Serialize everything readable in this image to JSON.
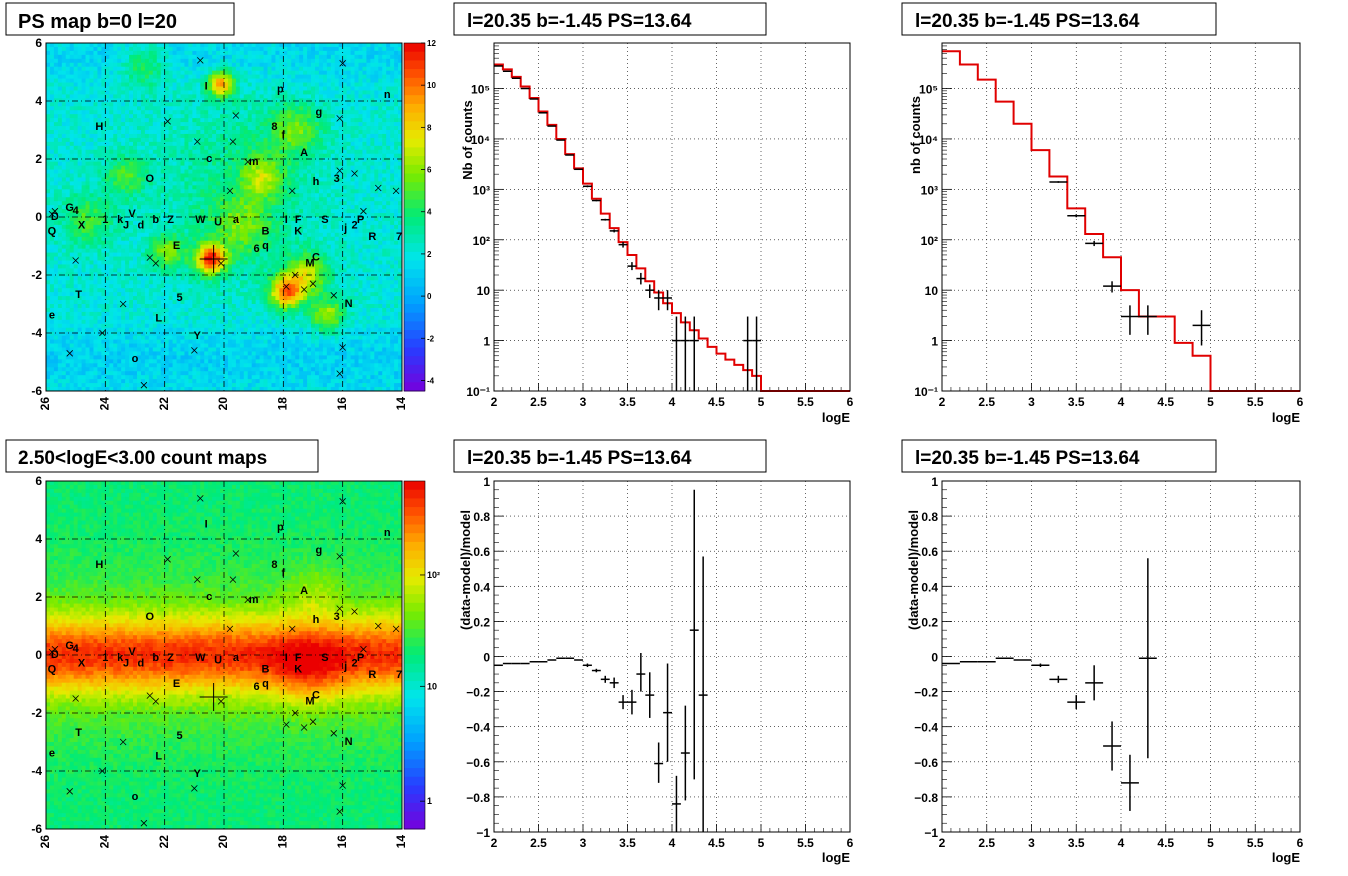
{
  "panels": {
    "map_top": {
      "title": "PS map b=0 l=20",
      "x_ticks": [
        "26",
        "24",
        "22",
        "20",
        "18",
        "16",
        "14"
      ],
      "y_ticks": [
        "6",
        "4",
        "2",
        "0",
        "-2",
        "-4",
        "-6"
      ],
      "colorbar_ticks": [
        "12",
        "10",
        "8",
        "6",
        "4",
        "2",
        "0",
        "-2",
        "-4"
      ]
    },
    "map_bottom": {
      "title": "2.50<logE<3.00 count maps",
      "x_ticks": [
        "26",
        "24",
        "22",
        "20",
        "18",
        "16",
        "14"
      ],
      "y_ticks": [
        "6",
        "4",
        "2",
        "0",
        "-2",
        "-4",
        "-6"
      ],
      "colorbar_ticks": [
        "10²",
        "10",
        "1"
      ]
    },
    "source_labels": [
      {
        "t": "I",
        "l": 20.6,
        "b": 4.5
      },
      {
        "t": "p",
        "l": 18.1,
        "b": 4.4
      },
      {
        "t": "n",
        "l": 14.5,
        "b": 4.2
      },
      {
        "t": "g",
        "l": 16.8,
        "b": 3.6
      },
      {
        "t": "H",
        "l": 24.2,
        "b": 3.1
      },
      {
        "t": "8",
        "l": 18.3,
        "b": 3.1
      },
      {
        "t": "f",
        "l": 18.0,
        "b": 2.8
      },
      {
        "t": "A",
        "l": 17.3,
        "b": 2.2
      },
      {
        "t": "c",
        "l": 20.5,
        "b": 2.0
      },
      {
        "t": "m",
        "l": 19.0,
        "b": 1.9
      },
      {
        "t": "h",
        "l": 16.9,
        "b": 1.2
      },
      {
        "t": "3",
        "l": 16.2,
        "b": 1.3
      },
      {
        "t": "O",
        "l": 22.5,
        "b": 1.3
      },
      {
        "t": "G",
        "l": 25.2,
        "b": 0.3
      },
      {
        "t": "4",
        "l": 25.0,
        "b": 0.2
      },
      {
        "t": "D",
        "l": 25.7,
        "b": 0.0
      },
      {
        "t": "1",
        "l": 24.0,
        "b": -0.1
      },
      {
        "t": "k",
        "l": 23.5,
        "b": -0.1
      },
      {
        "t": "V",
        "l": 23.1,
        "b": 0.1
      },
      {
        "t": "b",
        "l": 22.3,
        "b": -0.1
      },
      {
        "t": "Z",
        "l": 21.8,
        "b": -0.1
      },
      {
        "t": "W",
        "l": 20.8,
        "b": -0.1
      },
      {
        "t": "U",
        "l": 20.2,
        "b": -0.2
      },
      {
        "t": "a",
        "l": 19.6,
        "b": -0.1
      },
      {
        "t": "I",
        "l": 17.9,
        "b": -0.1
      },
      {
        "t": "F",
        "l": 17.5,
        "b": -0.1
      },
      {
        "t": "S",
        "l": 16.6,
        "b": -0.1
      },
      {
        "t": "P",
        "l": 15.4,
        "b": -0.1
      },
      {
        "t": "X",
        "l": 24.8,
        "b": -0.3
      },
      {
        "t": "J",
        "l": 23.3,
        "b": -0.3
      },
      {
        "t": "d",
        "l": 22.8,
        "b": -0.3
      },
      {
        "t": "2",
        "l": 15.6,
        "b": -0.3
      },
      {
        "t": "j",
        "l": 15.9,
        "b": -0.4
      },
      {
        "t": "Q",
        "l": 25.8,
        "b": -0.5
      },
      {
        "t": "B",
        "l": 18.6,
        "b": -0.5
      },
      {
        "t": "K",
        "l": 17.5,
        "b": -0.5
      },
      {
        "t": "R",
        "l": 15.0,
        "b": -0.7
      },
      {
        "t": "7",
        "l": 14.1,
        "b": -0.7
      },
      {
        "t": "E",
        "l": 21.6,
        "b": -1.0
      },
      {
        "t": "6",
        "l": 18.9,
        "b": -1.1
      },
      {
        "t": "q",
        "l": 18.6,
        "b": -1.0
      },
      {
        "t": "C",
        "l": 16.9,
        "b": -1.4
      },
      {
        "t": "M",
        "l": 17.1,
        "b": -1.6
      },
      {
        "t": "T",
        "l": 24.9,
        "b": -2.7
      },
      {
        "t": "5",
        "l": 21.5,
        "b": -2.8
      },
      {
        "t": "N",
        "l": 15.8,
        "b": -3.0
      },
      {
        "t": "e",
        "l": 25.8,
        "b": -3.4
      },
      {
        "t": "L",
        "l": 22.2,
        "b": -3.5
      },
      {
        "t": "Y",
        "l": 20.9,
        "b": -4.1
      },
      {
        "t": "o",
        "l": 23.0,
        "b": -4.9
      }
    ],
    "spectrum_top_left": {
      "title": "l=20.35 b=-1.45 PS=13.64",
      "ylabel": "Nb of counts",
      "xlabel": "logE"
    },
    "spectrum_top_right": {
      "title": "l=20.35 b=-1.45 PS=13.64",
      "ylabel": "nb of counts",
      "xlabel": "logE"
    },
    "residual_bottom_left": {
      "title": "l=20.35 b=-1.45 PS=13.64",
      "ylabel": "(data-model)/model",
      "xlabel": "logE"
    },
    "residual_bottom_right": {
      "title": "l=20.35 b=-1.45 PS=13.64",
      "ylabel": "(data-model)/model",
      "xlabel": "logE"
    }
  },
  "chart_data": [
    {
      "type": "heatmap",
      "id": "map_top",
      "title": "PS map b=0 l=20",
      "xlim": [
        26,
        14
      ],
      "ylim": [
        -6,
        6
      ],
      "zlim": [
        -4.5,
        12
      ],
      "colorbar": "rainbow",
      "grid": true
    },
    {
      "type": "heatmap",
      "id": "map_bottom",
      "title": "2.50<logE<3.00 count maps",
      "xlim": [
        26,
        14
      ],
      "ylim": [
        -6,
        6
      ],
      "zscale": "log",
      "colorbar": "rainbow",
      "grid": true
    },
    {
      "type": "line",
      "id": "spectrum_top_left",
      "title": "l=20.35 b=-1.45 PS=13.64",
      "xlabel": "logE",
      "ylabel": "Nb of counts",
      "xlim": [
        2,
        6
      ],
      "ylim": [
        0.1,
        800000
      ],
      "yscale": "log",
      "grid": true,
      "series": [
        {
          "kind": "model_step",
          "color": "#e00000",
          "edges": [
            2.0,
            2.1,
            2.2,
            2.3,
            2.4,
            2.5,
            2.6,
            2.7,
            2.8,
            2.9,
            3.0,
            3.1,
            3.2,
            3.3,
            3.4,
            3.5,
            3.6,
            3.7,
            3.8,
            3.9,
            4.0,
            4.1,
            4.2,
            4.3,
            4.4,
            4.5,
            4.6,
            4.7,
            4.8,
            4.9,
            5.0,
            5.1,
            5.2,
            5.3,
            5.4,
            5.5,
            5.6,
            5.7,
            5.8,
            5.9,
            6.0
          ],
          "values": [
            300000,
            240000,
            170000,
            110000,
            65000,
            35000,
            19000,
            10000,
            5000,
            2600,
            1300,
            650,
            330,
            170,
            90,
            50,
            27,
            15,
            9,
            5.5,
            3.5,
            2.3,
            1.6,
            1.1,
            0.75,
            0.55,
            0.42,
            0.33,
            0.26,
            0.2,
            0.1,
            0.1,
            0.1,
            0.1,
            0.1,
            0.1,
            0.1,
            0.1,
            0.1,
            0.1
          ]
        },
        {
          "kind": "data_points",
          "x": [
            2.05,
            2.15,
            2.25,
            2.35,
            2.45,
            2.55,
            2.65,
            2.75,
            2.85,
            2.95,
            3.05,
            3.15,
            3.25,
            3.35,
            3.45,
            3.55,
            3.65,
            3.75,
            3.85,
            3.95,
            4.05,
            4.15,
            4.25,
            4.85,
            4.95
          ],
          "y": [
            280000,
            220000,
            160000,
            100000,
            62000,
            33000,
            18000,
            9500,
            4800,
            2500,
            1150,
            600,
            250,
            150,
            80,
            30,
            17,
            10,
            7,
            7,
            1,
            1,
            1,
            1,
            1
          ],
          "ylo": [
            278000,
            219000,
            159000,
            99000,
            61500,
            32500,
            17800,
            9300,
            4700,
            2450,
            1100,
            580,
            240,
            140,
            70,
            25,
            13,
            7,
            4,
            4,
            0.1,
            0.1,
            0.1,
            0.1,
            0.1
          ],
          "yhi": [
            282000,
            221000,
            161000,
            101000,
            62500,
            33500,
            18200,
            9700,
            4900,
            2550,
            1200,
            620,
            260,
            160,
            90,
            36,
            22,
            13,
            10,
            10,
            3,
            3,
            3,
            3,
            3
          ]
        }
      ]
    },
    {
      "type": "line",
      "id": "spectrum_top_right",
      "title": "l=20.35 b=-1.45 PS=13.64",
      "xlabel": "logE",
      "ylabel": "nb of counts",
      "xlim": [
        2,
        6
      ],
      "ylim": [
        0.1,
        800000
      ],
      "yscale": "log",
      "grid": true,
      "series": [
        {
          "kind": "model_step",
          "color": "#e00000",
          "edges": [
            2.0,
            2.2,
            2.4,
            2.6,
            2.8,
            3.0,
            3.2,
            3.4,
            3.6,
            3.8,
            4.0,
            4.2,
            4.4,
            4.6,
            4.8,
            5.0,
            5.2,
            5.4,
            5.6,
            5.8,
            6.0
          ],
          "values": [
            550000,
            300000,
            150000,
            55000,
            20000,
            6000,
            1800,
            420,
            130,
            45,
            10,
            3,
            3,
            0.9,
            0.5,
            0.1,
            0.1,
            0.1,
            0.1,
            0.1
          ]
        },
        {
          "kind": "data_points",
          "x": [
            3.3,
            3.5,
            3.7,
            3.9,
            4.1,
            4.3,
            4.9
          ],
          "y": [
            1400,
            300,
            85,
            12,
            3,
            3,
            2
          ],
          "ylo": [
            1350,
            280,
            75,
            9,
            1.3,
            1.3,
            0.8
          ],
          "yhi": [
            1450,
            320,
            95,
            15,
            5,
            5,
            4
          ]
        }
      ]
    },
    {
      "type": "scatter",
      "id": "residual_bottom_left",
      "title": "l=20.35 b=-1.45 PS=13.64",
      "xlabel": "logE",
      "ylabel": "(data-model)/model",
      "xlim": [
        2,
        6
      ],
      "ylim": [
        -1,
        1
      ],
      "grid": true,
      "series": [
        {
          "kind": "data_points",
          "x": [
            2.05,
            2.15,
            2.25,
            2.35,
            2.45,
            2.55,
            2.65,
            2.75,
            2.85,
            2.95,
            3.05,
            3.15,
            3.25,
            3.35,
            3.45,
            3.55,
            3.65,
            3.75,
            3.85,
            3.95,
            4.05,
            4.15,
            4.25,
            4.35
          ],
          "y": [
            -0.05,
            -0.04,
            -0.04,
            -0.04,
            -0.03,
            -0.03,
            -0.02,
            -0.01,
            -0.01,
            -0.02,
            -0.05,
            -0.08,
            -0.13,
            -0.15,
            -0.26,
            -0.26,
            -0.1,
            -0.22,
            -0.61,
            -0.32,
            -0.84,
            -0.55,
            0.15,
            -0.22
          ],
          "ylo": [
            -0.05,
            -0.04,
            -0.04,
            -0.04,
            -0.03,
            -0.03,
            -0.02,
            -0.01,
            -0.01,
            -0.02,
            -0.06,
            -0.09,
            -0.15,
            -0.18,
            -0.3,
            -0.33,
            -0.2,
            -0.35,
            -0.72,
            -0.6,
            -1.0,
            -0.82,
            -0.7,
            -1.0
          ],
          "yhi": [
            -0.05,
            -0.04,
            -0.04,
            -0.04,
            -0.03,
            -0.03,
            -0.02,
            -0.01,
            -0.01,
            -0.02,
            -0.04,
            -0.07,
            -0.11,
            -0.12,
            -0.22,
            -0.19,
            0.02,
            -0.09,
            -0.49,
            -0.04,
            -0.68,
            -0.28,
            0.95,
            0.57
          ]
        }
      ]
    },
    {
      "type": "scatter",
      "id": "residual_bottom_right",
      "title": "l=20.35 b=-1.45 PS=13.64",
      "xlabel": "logE",
      "ylabel": "(data-model)/model",
      "xlim": [
        2,
        6
      ],
      "ylim": [
        -1,
        1
      ],
      "grid": true,
      "series": [
        {
          "kind": "data_points",
          "x": [
            2.1,
            2.3,
            2.5,
            2.7,
            2.9,
            3.1,
            3.3,
            3.5,
            3.7,
            3.9,
            4.1,
            4.3
          ],
          "y": [
            -0.04,
            -0.03,
            -0.03,
            -0.01,
            -0.02,
            -0.05,
            -0.13,
            -0.26,
            -0.15,
            -0.51,
            -0.72,
            -0.01
          ],
          "ylo": [
            -0.04,
            -0.03,
            -0.03,
            -0.01,
            -0.02,
            -0.06,
            -0.15,
            -0.3,
            -0.25,
            -0.65,
            -0.88,
            -0.58
          ],
          "yhi": [
            -0.04,
            -0.03,
            -0.03,
            -0.01,
            -0.02,
            -0.04,
            -0.11,
            -0.22,
            -0.05,
            -0.37,
            -0.56,
            0.56
          ]
        }
      ]
    }
  ]
}
